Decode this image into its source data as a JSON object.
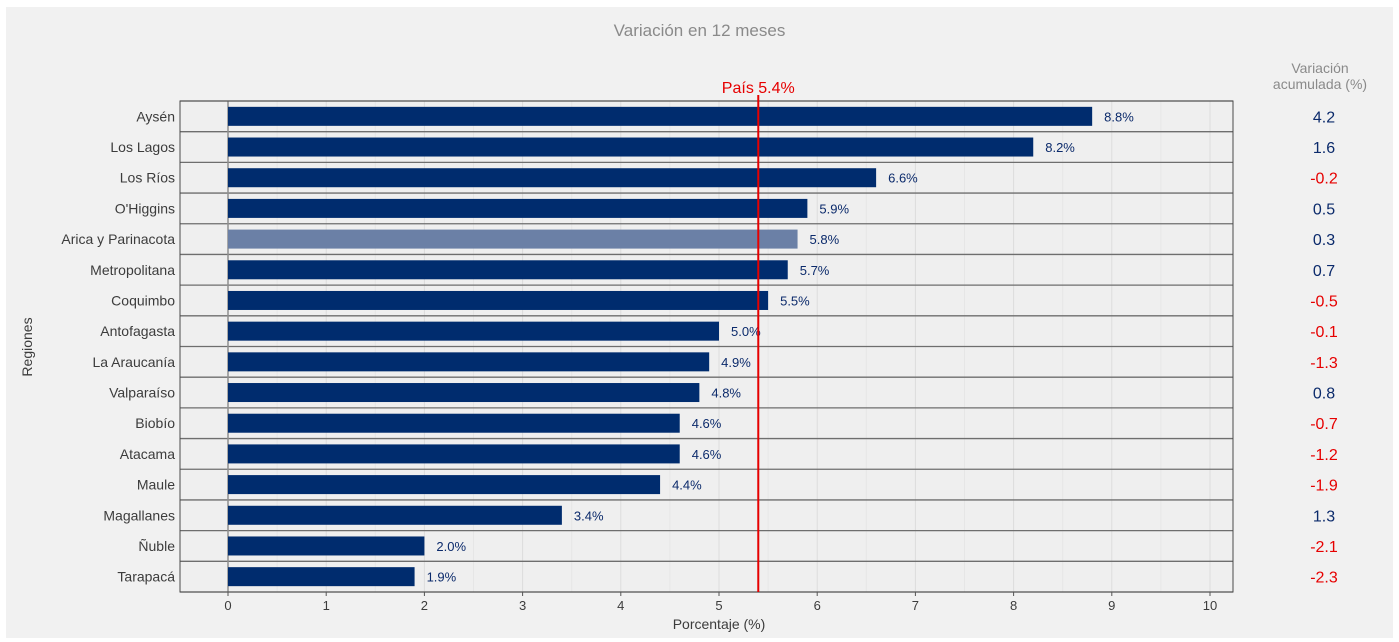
{
  "chart_data": {
    "type": "bar",
    "orientation": "horizontal",
    "title": "Variación en 12 meses",
    "xlabel": "Porcentaje (%)",
    "ylabel": "Regiones",
    "xlim": [
      -0.5,
      10.25
    ],
    "x_ticks": [
      "0",
      "1",
      "2",
      "3",
      "4",
      "5",
      "6",
      "7",
      "8",
      "9",
      "10"
    ],
    "grid": true,
    "categories": [
      "Aysén",
      "Los Lagos",
      "Los Ríos",
      "O'Higgins",
      "Arica y Parinacota",
      "Metropolitana",
      "Coquimbo",
      "Antofagasta",
      "La Araucanía",
      "Valparaíso",
      "Biobío",
      "Atacama",
      "Maule",
      "Magallanes",
      "Ñuble",
      "Tarapacá"
    ],
    "values": [
      8.8,
      8.2,
      6.6,
      5.9,
      5.8,
      5.7,
      5.5,
      5.0,
      4.9,
      4.8,
      4.6,
      4.6,
      4.4,
      3.4,
      2.0,
      1.9
    ],
    "value_labels": [
      "8.8%",
      "8.2%",
      "6.6%",
      "5.9%",
      "5.8%",
      "5.7%",
      "5.5%",
      "5.0%",
      "4.9%",
      "4.8%",
      "4.6%",
      "4.6%",
      "4.4%",
      "3.4%",
      "2.0%",
      "1.9%"
    ],
    "highlight_category": "Arica y Parinacota",
    "reference_line": {
      "value": 5.4,
      "label": "País 5.4%"
    },
    "side_column": {
      "header": [
        "Variación",
        "acumulada (%)"
      ],
      "values": [
        "4.2",
        "1.6",
        "-0.2",
        "0.5",
        "0.3",
        "0.7",
        "-0.5",
        "-0.1",
        "-1.3",
        "0.8",
        "-0.7",
        "-1.2",
        "-1.9",
        "1.3",
        "-2.1",
        "-2.3"
      ]
    }
  },
  "colors": {
    "bar": "#002c6e",
    "bar_highlight": "#6b80a6",
    "reference": "#e60000",
    "positive": "#0b2a6b",
    "negative": "#e60000",
    "muted_text": "#8a8a8a",
    "axis_text": "#3c3c3c"
  }
}
